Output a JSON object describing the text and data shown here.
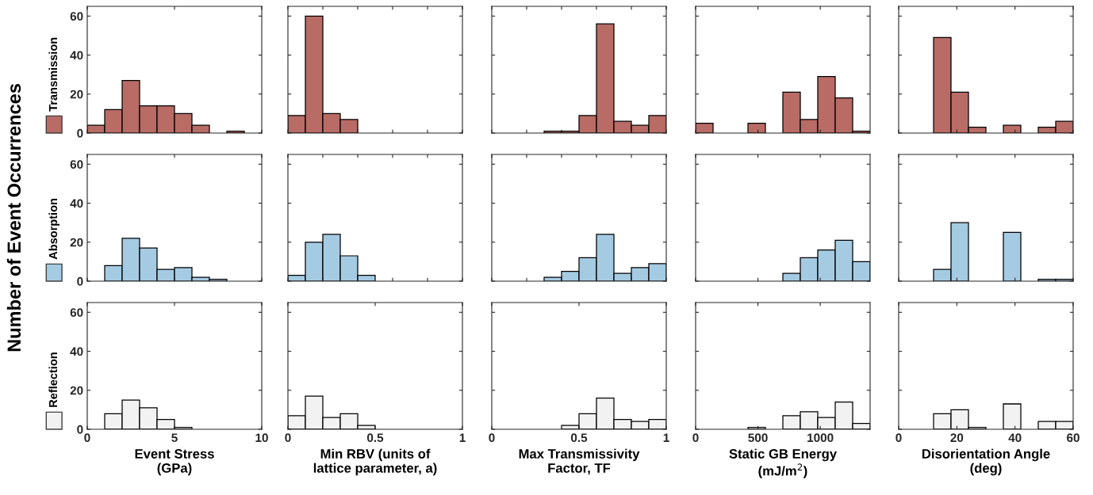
{
  "chart_data": [
    {
      "type": "histogram",
      "bins": [
        0,
        1,
        2,
        3,
        4,
        5,
        6,
        7,
        8,
        9,
        10
      ],
      "series": [
        {
          "name": "Transmission",
          "color": "#b96b65",
          "values": [
            4,
            12,
            27,
            14,
            14,
            10,
            4,
            0,
            1,
            0
          ]
        }
      ],
      "legend": "left",
      "xlim": [
        0,
        10
      ],
      "xticks": [
        0,
        5,
        10
      ],
      "ylim": [
        0,
        65
      ],
      "yticks": [
        0,
        20,
        40,
        60
      ],
      "tick_labels": "y"
    },
    {
      "type": "histogram",
      "bins": [
        0,
        0.1,
        0.2,
        0.3,
        0.4,
        0.5,
        0.6,
        0.7,
        0.8,
        0.9,
        1
      ],
      "series": [
        {
          "color": "#b96b65",
          "values": [
            9,
            60,
            10,
            7,
            0,
            0,
            0,
            0,
            0,
            0
          ]
        }
      ],
      "xlim": [
        0,
        1
      ],
      "xticks": [
        0,
        0.2,
        0.4,
        0.6,
        0.8,
        1
      ],
      "ylim": [
        0,
        65
      ],
      "yticks": [
        0,
        20,
        40,
        60
      ],
      "tick_labels": false
    },
    {
      "type": "histogram",
      "bins": [
        0,
        0.1,
        0.2,
        0.3,
        0.4,
        0.5,
        0.6,
        0.7,
        0.8,
        0.9,
        1
      ],
      "series": [
        {
          "color": "#b96b65",
          "values": [
            0,
            0,
            0,
            1,
            1,
            9,
            56,
            6,
            4,
            9
          ]
        }
      ],
      "xlim": [
        0,
        1
      ],
      "xticks": [
        0,
        0.2,
        0.4,
        0.6,
        0.8,
        1
      ],
      "ylim": [
        0,
        65
      ],
      "yticks": [
        0,
        20,
        40,
        60
      ],
      "tick_labels": false
    },
    {
      "type": "histogram",
      "bins": [
        0,
        140,
        280,
        420,
        560,
        700,
        840,
        980,
        1120,
        1260,
        1400
      ],
      "series": [
        {
          "color": "#b96b65",
          "values": [
            5,
            0,
            0,
            5,
            0,
            21,
            7,
            29,
            18,
            1
          ]
        }
      ],
      "xlim": [
        0,
        1400
      ],
      "xticks": [
        0,
        500,
        1000
      ],
      "ylim": [
        0,
        65
      ],
      "yticks": [
        0,
        20,
        40,
        60
      ],
      "tick_labels": false
    },
    {
      "type": "histogram",
      "bins": [
        0,
        6,
        12,
        18,
        24,
        30,
        36,
        42,
        48,
        54,
        60
      ],
      "series": [
        {
          "color": "#b96b65",
          "values": [
            0,
            0,
            49,
            21,
            3,
            0,
            4,
            0,
            3,
            6
          ]
        }
      ],
      "xlim": [
        0,
        60
      ],
      "xticks": [
        0,
        20,
        40,
        60
      ],
      "ylim": [
        0,
        65
      ],
      "yticks": [
        0,
        20,
        40,
        60
      ],
      "tick_labels": false
    },
    {
      "type": "histogram",
      "ylabel": "Number of Event Occurrences",
      "bins": [
        0,
        1,
        2,
        3,
        4,
        5,
        6,
        7,
        8,
        9,
        10
      ],
      "series": [
        {
          "name": "Absorption",
          "color": "#a5cbe3",
          "values": [
            0,
            8,
            22,
            17,
            6,
            7,
            2,
            1,
            0,
            0
          ]
        }
      ],
      "legend": "left",
      "xlim": [
        0,
        10
      ],
      "xticks": [
        0,
        5,
        10
      ],
      "ylim": [
        0,
        65
      ],
      "yticks": [
        0,
        20,
        40,
        60
      ],
      "tick_labels": "y"
    },
    {
      "type": "histogram",
      "bins": [
        0,
        0.1,
        0.2,
        0.3,
        0.4,
        0.5,
        0.6,
        0.7,
        0.8,
        0.9,
        1
      ],
      "series": [
        {
          "color": "#a5cbe3",
          "values": [
            3,
            20,
            24,
            13,
            3,
            0,
            0,
            0,
            0,
            0
          ]
        }
      ],
      "xlim": [
        0,
        1
      ],
      "xticks": [
        0,
        0.2,
        0.4,
        0.6,
        0.8,
        1
      ],
      "ylim": [
        0,
        65
      ],
      "yticks": [
        0,
        20,
        40,
        60
      ],
      "tick_labels": false
    },
    {
      "type": "histogram",
      "bins": [
        0,
        0.1,
        0.2,
        0.3,
        0.4,
        0.5,
        0.6,
        0.7,
        0.8,
        0.9,
        1
      ],
      "series": [
        {
          "color": "#a5cbe3",
          "values": [
            0,
            0,
            0,
            2,
            5,
            12,
            24,
            4,
            7,
            9
          ]
        }
      ],
      "xlim": [
        0,
        1
      ],
      "xticks": [
        0,
        0.2,
        0.4,
        0.6,
        0.8,
        1
      ],
      "ylim": [
        0,
        65
      ],
      "yticks": [
        0,
        20,
        40,
        60
      ],
      "tick_labels": false
    },
    {
      "type": "histogram",
      "bins": [
        0,
        140,
        280,
        420,
        560,
        700,
        840,
        980,
        1120,
        1260,
        1400
      ],
      "series": [
        {
          "color": "#a5cbe3",
          "values": [
            0,
            0,
            0,
            0,
            0,
            4,
            12,
            16,
            21,
            10
          ]
        }
      ],
      "xlim": [
        0,
        1400
      ],
      "xticks": [
        0,
        500,
        1000
      ],
      "ylim": [
        0,
        65
      ],
      "yticks": [
        0,
        20,
        40,
        60
      ],
      "tick_labels": false
    },
    {
      "type": "histogram",
      "bins": [
        0,
        6,
        12,
        18,
        24,
        30,
        36,
        42,
        48,
        54,
        60
      ],
      "series": [
        {
          "color": "#a5cbe3",
          "values": [
            0,
            0,
            6,
            30,
            0,
            0,
            25,
            0,
            1,
            1
          ]
        }
      ],
      "xlim": [
        0,
        60
      ],
      "xticks": [
        0,
        20,
        40,
        60
      ],
      "ylim": [
        0,
        65
      ],
      "yticks": [
        0,
        20,
        40,
        60
      ],
      "tick_labels": false
    },
    {
      "type": "histogram",
      "xlabel": "Event Stress\n(GPa)",
      "bins": [
        0,
        1,
        2,
        3,
        4,
        5,
        6,
        7,
        8,
        9,
        10
      ],
      "series": [
        {
          "name": "Reflection",
          "color": "#f2f2f2",
          "values": [
            0,
            8,
            15,
            11,
            5,
            1,
            0,
            0,
            0,
            0
          ]
        }
      ],
      "legend": "left",
      "xlim": [
        0,
        10
      ],
      "xticks": [
        0,
        5,
        10
      ],
      "ylim": [
        0,
        65
      ],
      "yticks": [
        0,
        20,
        40,
        60
      ]
    },
    {
      "type": "histogram",
      "xlabel": "Min RBV (units of\nlattice parameter, a)",
      "bins": [
        0,
        0.1,
        0.2,
        0.3,
        0.4,
        0.5,
        0.6,
        0.7,
        0.8,
        0.9,
        1
      ],
      "series": [
        {
          "color": "#f2f2f2",
          "values": [
            7,
            17,
            6,
            8,
            2,
            0,
            0,
            0,
            0,
            0
          ]
        }
      ],
      "xlim": [
        0,
        1
      ],
      "xticks": [
        0,
        0.5,
        1
      ],
      "ylim": [
        0,
        65
      ],
      "yticks": [
        0,
        20,
        40,
        60
      ],
      "tick_labels": "x"
    },
    {
      "type": "histogram",
      "xlabel": "Max Transmissivity\nFactor, TF",
      "bins": [
        0,
        0.1,
        0.2,
        0.3,
        0.4,
        0.5,
        0.6,
        0.7,
        0.8,
        0.9,
        1
      ],
      "series": [
        {
          "color": "#f2f2f2",
          "values": [
            0,
            0,
            0,
            0,
            2,
            8,
            16,
            5,
            4,
            5
          ]
        }
      ],
      "xlim": [
        0,
        1
      ],
      "xticks": [
        0,
        0.5,
        1
      ],
      "ylim": [
        0,
        65
      ],
      "yticks": [
        0,
        20,
        40,
        60
      ],
      "tick_labels": "x"
    },
    {
      "type": "histogram",
      "xlabel": "Static GB Energy\n(mJ/m$^{2}$)",
      "bins": [
        0,
        140,
        280,
        420,
        560,
        700,
        840,
        980,
        1120,
        1260,
        1400
      ],
      "series": [
        {
          "color": "#f2f2f2",
          "values": [
            0,
            0,
            0,
            1,
            0,
            7,
            9,
            6,
            14,
            3
          ]
        }
      ],
      "xlim": [
        0,
        1400
      ],
      "xticks": [
        0,
        500,
        1000
      ],
      "ylim": [
        0,
        65
      ],
      "yticks": [
        0,
        20,
        40,
        60
      ],
      "tick_labels": "x"
    },
    {
      "type": "histogram",
      "xlabel": "Disorientation Angle\n(deg)",
      "bins": [
        0,
        6,
        12,
        18,
        24,
        30,
        36,
        42,
        48,
        54,
        60
      ],
      "series": [
        {
          "color": "#f2f2f2",
          "values": [
            0,
            0,
            8,
            10,
            1,
            0,
            13,
            0,
            4,
            4
          ]
        }
      ],
      "xlim": [
        0,
        60
      ],
      "xticks": [
        0,
        20,
        40,
        60
      ],
      "ylim": [
        0,
        65
      ],
      "yticks": [
        0,
        20,
        40,
        60
      ],
      "tick_labels": "x"
    }
  ]
}
